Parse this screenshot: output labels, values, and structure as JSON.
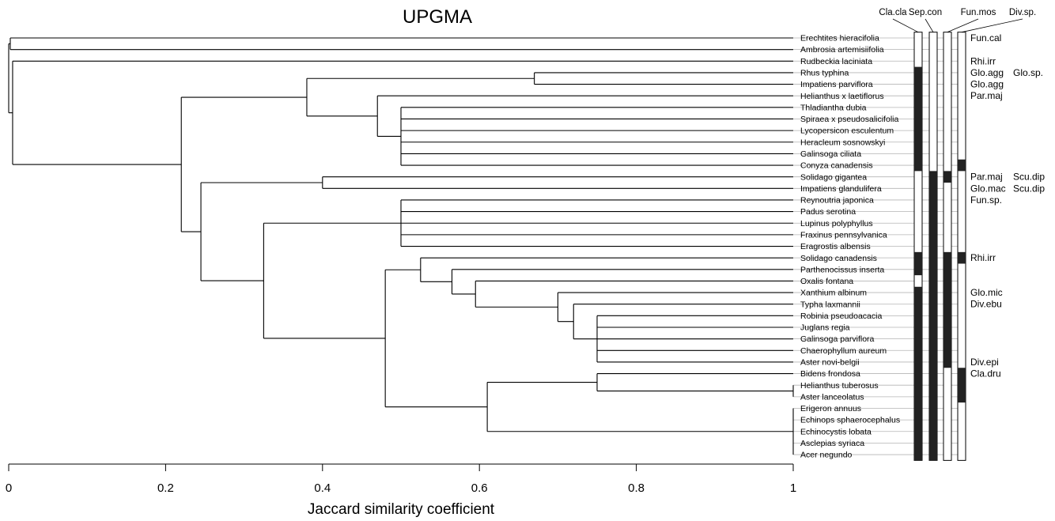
{
  "title": "UPGMA",
  "axis": {
    "label": "Jaccard similarity coefficient",
    "ticks": [
      "0",
      "0.2",
      "0.4",
      "0.6",
      "0.8",
      "1"
    ],
    "tick_values": [
      0,
      0.2,
      0.4,
      0.6,
      0.8,
      1.0
    ]
  },
  "leaves": [
    "Erechtites hieracifolia",
    "Ambrosia artemisiifolia",
    "Rudbeckia laciniata",
    "Rhus typhina",
    "Impatiens parviflora",
    "Helianthus x laetiflorus",
    "Thladiantha dubia",
    "Spiraea x pseudosalicifolia",
    "Lycopersicon esculentum",
    "Heracleum sosnowskyi",
    "Galinsoga ciliata",
    "Conyza canadensis",
    "Solidago gigantea",
    "Impatiens glandulifera",
    "Reynoutria japonica",
    "Padus serotina",
    "Lupinus polyphyllus",
    "Fraxinus pennsylvanica",
    "Eragrostis albensis",
    "Solidago canadensis",
    "Parthenocissus inserta",
    "Oxalis fontana",
    "Xanthium albinum",
    "Typha laxmannii",
    "Robinia pseudoacacia",
    "Juglans regia",
    "Galinsoga parviflora",
    "Chaerophyllum aureum",
    "Aster novi-belgii",
    "Bidens frondosa",
    "Helianthus tuberosus",
    "Aster lanceolatus",
    "Erigeron annuus",
    "Echinops sphaerocephalus",
    "Echinocystis lobata",
    "Asclepias syriaca",
    "Acer negundo"
  ],
  "tree": [
    {
      "s": 0.5,
      "c": [
        6,
        7,
        8,
        9,
        10,
        11
      ]
    },
    {
      "s": 0.47,
      "c": [
        5,
        "n0"
      ]
    },
    {
      "s": 0.67,
      "c": [
        3,
        4
      ]
    },
    {
      "s": 0.38,
      "c": [
        "n2",
        "n1"
      ]
    },
    {
      "s": 0.4,
      "c": [
        12,
        13
      ]
    },
    {
      "s": 0.5,
      "c": [
        14,
        15,
        16,
        17,
        18
      ]
    },
    {
      "s": 0.75,
      "c": [
        24,
        25,
        26,
        27,
        28
      ]
    },
    {
      "s": 0.72,
      "c": [
        23,
        "n6"
      ]
    },
    {
      "s": 0.7,
      "c": [
        22,
        "n7"
      ]
    },
    {
      "s": 0.595,
      "c": [
        21,
        "n8"
      ]
    },
    {
      "s": 0.565,
      "c": [
        20,
        "n9"
      ]
    },
    {
      "s": 0.525,
      "c": [
        19,
        "n10"
      ]
    },
    {
      "s": 1.0,
      "c": [
        30,
        31
      ]
    },
    {
      "s": 0.75,
      "c": [
        29,
        "n12"
      ]
    },
    {
      "s": 1.0,
      "c": [
        32,
        33,
        34,
        35,
        36
      ]
    },
    {
      "s": 0.61,
      "c": [
        "n13",
        "n14"
      ]
    },
    {
      "s": 0.48,
      "c": [
        "n11",
        "n15"
      ]
    },
    {
      "s": 0.325,
      "c": [
        "n5",
        "n16"
      ]
    },
    {
      "s": 0.245,
      "c": [
        "n4",
        "n17"
      ]
    },
    {
      "s": 0.22,
      "c": [
        "n3",
        "n18"
      ]
    },
    {
      "s": 0.005,
      "c": [
        2,
        "n19"
      ]
    },
    {
      "s": 0.002,
      "c": [
        0,
        1
      ]
    },
    {
      "s": 0.0,
      "c": [
        "n21",
        "n20"
      ]
    }
  ],
  "hosts": [
    {
      "label": "Cla.cla",
      "filled": [
        [
          3,
          11
        ],
        [
          19,
          20
        ],
        [
          22,
          36
        ]
      ]
    },
    {
      "label": "Sep.con",
      "filled": [
        [
          12,
          36
        ]
      ]
    },
    {
      "label": "Fun.mos",
      "filled": [
        [
          12,
          12
        ],
        [
          19,
          28
        ]
      ]
    },
    {
      "label": "Div.sp.",
      "filled": [
        [
          11,
          11
        ],
        [
          19,
          19
        ],
        [
          29,
          31
        ]
      ]
    }
  ],
  "annotations": [
    {
      "row": 0,
      "cols": [
        "Fun.cal"
      ]
    },
    {
      "row": 2,
      "cols": [
        "Rhi.irr"
      ]
    },
    {
      "row": 3,
      "cols": [
        "Glo.agg",
        "Glo.sp."
      ]
    },
    {
      "row": 4,
      "cols": [
        "Glo.agg"
      ]
    },
    {
      "row": 5,
      "cols": [
        "Par.maj"
      ]
    },
    {
      "row": 12,
      "cols": [
        "Par.maj",
        "Scu.dip"
      ]
    },
    {
      "row": 13,
      "cols": [
        "Glo.mac",
        "Scu.dip"
      ]
    },
    {
      "row": 14,
      "cols": [
        "Fun.sp."
      ]
    },
    {
      "row": 19,
      "cols": [
        "Rhi.irr"
      ]
    },
    {
      "row": 22,
      "cols": [
        "Glo.mic"
      ]
    },
    {
      "row": 23,
      "cols": [
        "Div.ebu"
      ]
    },
    {
      "row": 28,
      "cols": [
        "Div.epi"
      ]
    },
    {
      "row": 29,
      "cols": [
        "Cla.dru"
      ]
    }
  ]
}
